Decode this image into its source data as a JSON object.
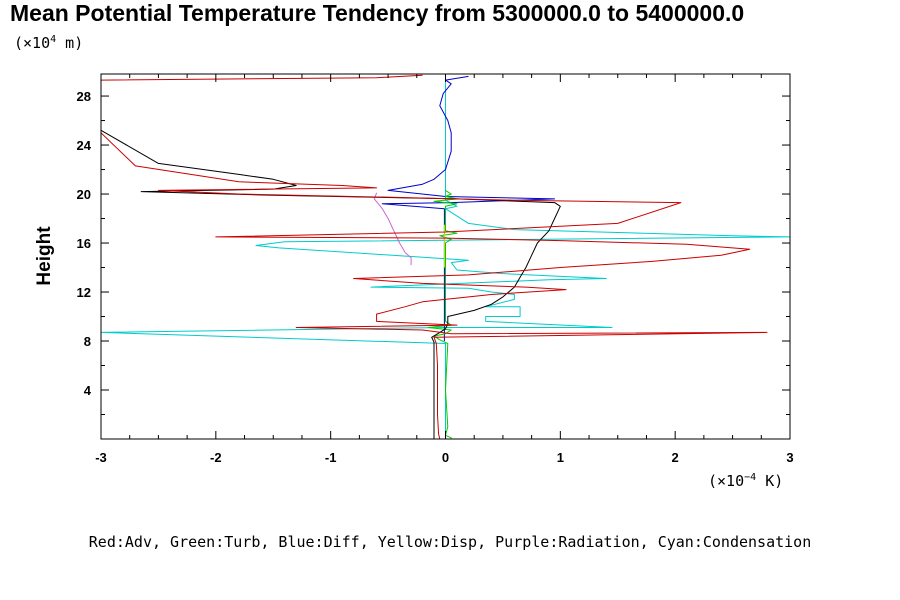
{
  "chart_data": {
    "type": "line",
    "title": "Mean Potential Temperature Tendency from 5300000.0 to 5400000.0",
    "y_unit_prefix": "(×10",
    "y_unit_exp": "4",
    "y_unit_suffix": " m)",
    "x_unit_prefix": "(×10",
    "x_unit_exp": "−4",
    "x_unit_suffix": " K)",
    "ylabel": "Height",
    "xlabel": "",
    "xlim": [
      -3,
      3
    ],
    "ylim": [
      0,
      29.8
    ],
    "x_ticks": [
      -3,
      -2,
      -1,
      0,
      1,
      2,
      3
    ],
    "x_tick_labels": [
      "-3",
      "-2",
      "-1",
      "0",
      "1",
      "2",
      "3"
    ],
    "y_ticks": [
      4,
      8,
      12,
      16,
      20,
      24,
      28
    ],
    "y_tick_labels": [
      "4",
      "8",
      "12",
      "16",
      "20",
      "24",
      "28"
    ],
    "grid": false,
    "legend_text": "Red:Adv, Green:Turb, Blue:Diff, Yellow:Disp, Purple:Radiation, Cyan:Condensation",
    "series": [
      {
        "name": "Adv",
        "color": "#cc0000",
        "points": [
          [
            -0.05,
            0.0
          ],
          [
            -0.06,
            0.4
          ],
          [
            -0.07,
            2.0
          ],
          [
            -0.07,
            4.0
          ],
          [
            -0.07,
            6.0
          ],
          [
            -0.08,
            7.8
          ],
          [
            -0.1,
            8.3
          ],
          [
            2.8,
            8.7
          ],
          [
            0.05,
            8.6
          ],
          [
            -0.2,
            8.9
          ],
          [
            -1.3,
            9.1
          ],
          [
            0.1,
            9.3
          ],
          [
            -0.6,
            9.6
          ],
          [
            -0.6,
            10.2
          ],
          [
            -0.35,
            10.8
          ],
          [
            -0.2,
            11.2
          ],
          [
            0.4,
            11.8
          ],
          [
            1.05,
            12.2
          ],
          [
            0.7,
            12.4
          ],
          [
            -0.2,
            12.7
          ],
          [
            -0.8,
            13.1
          ],
          [
            0.2,
            13.4
          ],
          [
            1.0,
            14.0
          ],
          [
            1.8,
            14.5
          ],
          [
            2.4,
            15.0
          ],
          [
            2.65,
            15.5
          ],
          [
            2.1,
            15.9
          ],
          [
            1.0,
            16.2
          ],
          [
            0.0,
            16.4
          ],
          [
            -2.0,
            16.5
          ],
          [
            0.0,
            16.9
          ],
          [
            1.5,
            17.6
          ],
          [
            2.05,
            19.3
          ],
          [
            0.6,
            19.5
          ],
          [
            -0.3,
            19.7
          ],
          [
            -1.8,
            20.0
          ],
          [
            -2.5,
            20.3
          ],
          [
            -0.6,
            20.5
          ],
          [
            -0.9,
            20.7
          ],
          [
            -1.8,
            21.0
          ],
          [
            -2.7,
            22.3
          ],
          [
            -3.0,
            25.0
          ],
          [
            -3.0,
            29.3
          ],
          [
            -0.6,
            29.5
          ],
          [
            -0.2,
            29.7
          ]
        ]
      },
      {
        "name": "Turb",
        "color": "#00cc00",
        "points": [
          [
            0.05,
            0.0
          ],
          [
            0.05,
            0.1
          ],
          [
            0.0,
            0.3
          ],
          [
            0.02,
            1.0
          ],
          [
            0.0,
            4.0
          ],
          [
            0.02,
            7.8
          ],
          [
            -0.05,
            8.1
          ],
          [
            -0.1,
            8.4
          ],
          [
            0.0,
            8.6
          ],
          [
            0.05,
            8.9
          ],
          [
            -0.15,
            9.1
          ],
          [
            0.05,
            9.3
          ],
          [
            0.0,
            9.6
          ],
          [
            0.0,
            16.0
          ],
          [
            0.05,
            16.3
          ],
          [
            -0.05,
            16.6
          ],
          [
            0.1,
            16.8
          ],
          [
            0.0,
            17.0
          ],
          [
            0.0,
            19.0
          ],
          [
            0.1,
            19.2
          ],
          [
            -0.1,
            19.4
          ],
          [
            0.1,
            19.6
          ],
          [
            0.0,
            19.8
          ],
          [
            0.05,
            20.0
          ],
          [
            0.0,
            20.3
          ]
        ]
      },
      {
        "name": "Diff",
        "color": "#0000cc",
        "points": [
          [
            -0.01,
            8.0
          ],
          [
            -0.01,
            18.8
          ],
          [
            -0.55,
            19.2
          ],
          [
            0.05,
            19.3
          ],
          [
            0.95,
            19.6
          ],
          [
            0.0,
            19.8
          ],
          [
            -0.5,
            20.3
          ],
          [
            -0.2,
            20.8
          ],
          [
            -0.1,
            21.2
          ],
          [
            0.0,
            22.0
          ],
          [
            0.05,
            23.5
          ],
          [
            0.05,
            25.0
          ],
          [
            0.02,
            26.0
          ],
          [
            -0.05,
            27.2
          ],
          [
            -0.02,
            28.2
          ],
          [
            0.05,
            29.0
          ],
          [
            0.0,
            29.3
          ],
          [
            0.2,
            29.6
          ]
        ]
      },
      {
        "name": "Disp",
        "color": "#e0e000",
        "points": [
          [
            -0.01,
            14.0
          ],
          [
            -0.01,
            17.5
          ]
        ]
      },
      {
        "name": "Radiation",
        "color": "#cc66cc",
        "points": [
          [
            -0.3,
            14.2
          ],
          [
            -0.3,
            14.8
          ],
          [
            -0.35,
            15.2
          ],
          [
            -0.4,
            16.0
          ],
          [
            -0.45,
            17.0
          ],
          [
            -0.5,
            18.0
          ],
          [
            -0.55,
            18.8
          ],
          [
            -0.62,
            19.6
          ],
          [
            -0.6,
            20.1
          ]
        ]
      },
      {
        "name": "Condensation",
        "color": "#00cccc",
        "points": [
          [
            0.0,
            0.0
          ],
          [
            0.0,
            7.8
          ],
          [
            -3.0,
            8.7
          ],
          [
            0.0,
            9.1
          ],
          [
            1.45,
            9.1
          ],
          [
            0.35,
            9.6
          ],
          [
            0.35,
            10.0
          ],
          [
            0.65,
            10.0
          ],
          [
            0.65,
            10.8
          ],
          [
            0.35,
            10.8
          ],
          [
            0.6,
            11.4
          ],
          [
            0.6,
            11.8
          ],
          [
            0.4,
            12.0
          ],
          [
            0.2,
            12.3
          ],
          [
            -0.65,
            12.4
          ],
          [
            0.9,
            13.0
          ],
          [
            1.4,
            13.1
          ],
          [
            0.5,
            13.5
          ],
          [
            0.1,
            13.8
          ],
          [
            0.05,
            14.4
          ],
          [
            0.2,
            14.6
          ],
          [
            -1.45,
            15.6
          ],
          [
            -1.65,
            15.8
          ],
          [
            -1.4,
            16.1
          ],
          [
            3.0,
            16.5
          ],
          [
            2.5,
            16.6
          ],
          [
            0.6,
            17.1
          ],
          [
            0.2,
            17.6
          ],
          [
            0.1,
            18.2
          ],
          [
            0.0,
            18.8
          ],
          [
            0.1,
            19.0
          ],
          [
            0.0,
            19.5
          ],
          [
            0.0,
            29.8
          ]
        ]
      },
      {
        "name": "",
        "color": "#000000",
        "points": [
          [
            -0.1,
            0.0
          ],
          [
            -0.1,
            7.9
          ],
          [
            -0.12,
            8.3
          ],
          [
            -0.05,
            8.7
          ],
          [
            0.0,
            9.0
          ],
          [
            0.02,
            9.4
          ],
          [
            0.02,
            10.0
          ],
          [
            0.25,
            10.5
          ],
          [
            0.4,
            11.0
          ],
          [
            0.5,
            11.6
          ],
          [
            0.6,
            12.4
          ],
          [
            0.65,
            13.2
          ],
          [
            0.7,
            14.0
          ],
          [
            0.75,
            15.0
          ],
          [
            0.8,
            16.0
          ],
          [
            0.9,
            17.0
          ],
          [
            0.95,
            18.0
          ],
          [
            1.0,
            19.0
          ],
          [
            0.95,
            19.3
          ],
          [
            0.1,
            19.6
          ],
          [
            -1.5,
            19.9
          ],
          [
            -2.65,
            20.2
          ],
          [
            -1.5,
            20.4
          ],
          [
            -1.3,
            20.7
          ],
          [
            -1.5,
            21.2
          ],
          [
            -1.8,
            21.6
          ],
          [
            -2.5,
            22.5
          ],
          [
            -3.0,
            25.2
          ]
        ]
      }
    ]
  }
}
